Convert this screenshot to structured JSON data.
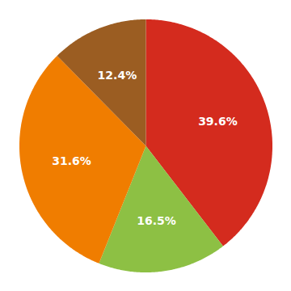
{
  "chart_data": {
    "type": "pie",
    "values": [
      39.6,
      16.5,
      31.6,
      12.4
    ],
    "value_labels": [
      "39.6%",
      "16.5%",
      "31.6%",
      "12.4%"
    ],
    "colors": [
      "#d42b1e",
      "#8dc044",
      "#f07d00",
      "#9b5d22"
    ],
    "data_labels": true
  }
}
